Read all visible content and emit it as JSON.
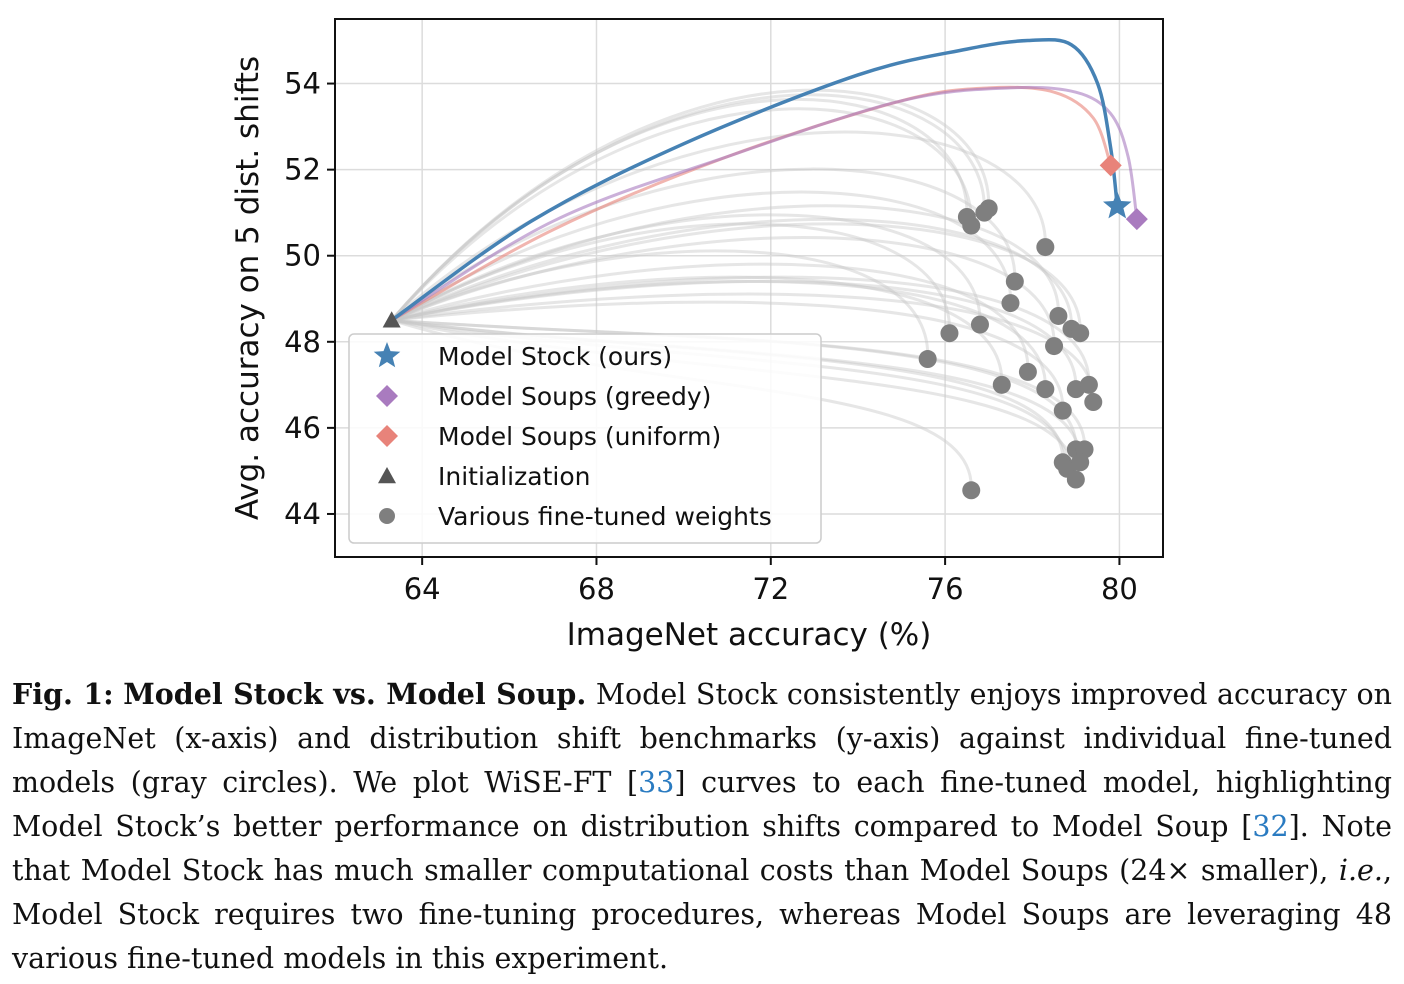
{
  "chart_data": {
    "type": "line",
    "xlabel": "ImageNet accuracy (%)",
    "ylabel": "Avg. accuracy on 5 dist. shifts",
    "xlim": [
      62,
      81
    ],
    "ylim": [
      43,
      55.5
    ],
    "xticks": [
      64,
      68,
      72,
      76,
      80
    ],
    "yticks": [
      44,
      46,
      48,
      50,
      52,
      54
    ],
    "grid": true,
    "legend_position": "lower-left",
    "legend": [
      {
        "label": "Model Stock (ours)",
        "marker": "star",
        "color": "#4682b4"
      },
      {
        "label": "Model Soups (greedy)",
        "marker": "diamond",
        "color": "#a97bbf"
      },
      {
        "label": "Model Soups (uniform)",
        "marker": "diamond",
        "color": "#e8837a"
      },
      {
        "label": "Initialization",
        "marker": "triangle",
        "color": "#555555"
      },
      {
        "label": "Various fine-tuned weights",
        "marker": "circle",
        "color": "#7f7f7f"
      }
    ],
    "series": [
      {
        "name": "Model Stock (ours)",
        "role": "stock",
        "color": "#4682b4",
        "x": [
          63.3,
          66.5,
          70.0,
          74.0,
          76.5,
          77.9,
          78.9,
          79.5,
          79.8,
          79.95
        ],
        "y": [
          48.5,
          50.8,
          52.6,
          54.2,
          54.8,
          55.0,
          54.9,
          54.0,
          52.5,
          51.15
        ]
      },
      {
        "name": "Model Soups (greedy)",
        "role": "greedy",
        "color": "#a97bbf",
        "x": [
          63.3,
          67.0,
          71.0,
          75.0,
          77.5,
          79.0,
          79.8,
          80.2,
          80.4
        ],
        "y": [
          48.5,
          50.8,
          52.3,
          53.6,
          53.9,
          53.8,
          53.3,
          52.3,
          50.85
        ]
      },
      {
        "name": "Model Soups (uniform)",
        "role": "uniform",
        "color": "#e8837a",
        "x": [
          63.3,
          67.0,
          71.0,
          75.0,
          77.0,
          78.5,
          79.4,
          79.8
        ],
        "y": [
          48.5,
          50.6,
          52.3,
          53.6,
          53.9,
          53.8,
          53.2,
          52.1
        ]
      },
      {
        "name": "Initialization",
        "role": "init",
        "color": "#555555",
        "x": [
          63.3
        ],
        "y": [
          48.5
        ]
      },
      {
        "name": "Various fine-tuned weights",
        "role": "finetuned",
        "color": "#7f7f7f",
        "x": [
          76.6,
          76.5,
          77.0,
          76.9,
          78.3,
          77.6,
          77.5,
          75.6,
          76.1,
          76.8,
          78.6,
          78.9,
          79.1,
          78.5,
          77.9,
          77.3,
          78.3,
          79.0,
          79.3,
          78.7,
          79.4,
          79.0,
          79.2,
          78.7,
          78.8,
          79.1,
          79.0,
          76.6
        ],
        "y": [
          50.7,
          50.9,
          51.1,
          51.0,
          50.2,
          49.4,
          48.9,
          47.6,
          48.2,
          48.4,
          48.6,
          48.3,
          48.2,
          47.9,
          47.3,
          47.0,
          46.9,
          46.9,
          47.0,
          46.4,
          46.6,
          45.5,
          45.5,
          45.2,
          45.05,
          45.2,
          44.8,
          44.55
        ]
      }
    ]
  },
  "caption": {
    "fig_label": "Fig. 1:",
    "fig_title": "Model Stock vs. Model Soup.",
    "t1": " Model Stock consistently enjoys improved accuracy on ImageNet (x-axis) and distribution shift benchmarks (y-axis) against individual fine-tuned models (gray circles). We plot WiSE-FT [",
    "cite1": "33",
    "t2": "] curves to each fine-tuned model, highlighting Model Stock’s better performance on distribution shifts compared to Model Soup [",
    "cite2": "32",
    "t3": "]. Note that Model Stock has much smaller computational costs than Model Soups (24× smaller), ",
    "ie": "i.e.",
    "t4": ", Model Stock requires two fine-tuning procedures, whereas Model Soups are leveraging 48 various fine-tuned models in this experiment."
  }
}
